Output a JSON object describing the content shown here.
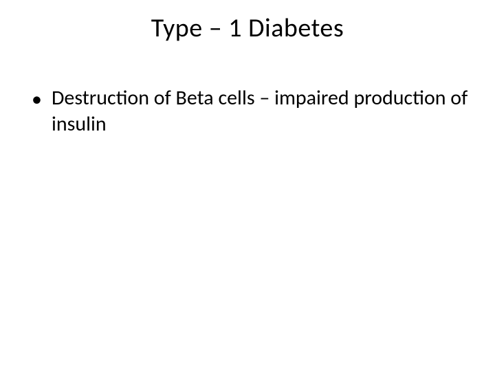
{
  "slide": {
    "title": "Type – 1 Diabetes",
    "bullets": [
      {
        "text": "Destruction of Beta cells – impaired production of insulin"
      }
    ]
  },
  "style": {
    "background_color": "#ffffff",
    "text_color": "#000000",
    "title_fontsize": 38,
    "body_fontsize": 30,
    "font_family": "Calibri"
  }
}
